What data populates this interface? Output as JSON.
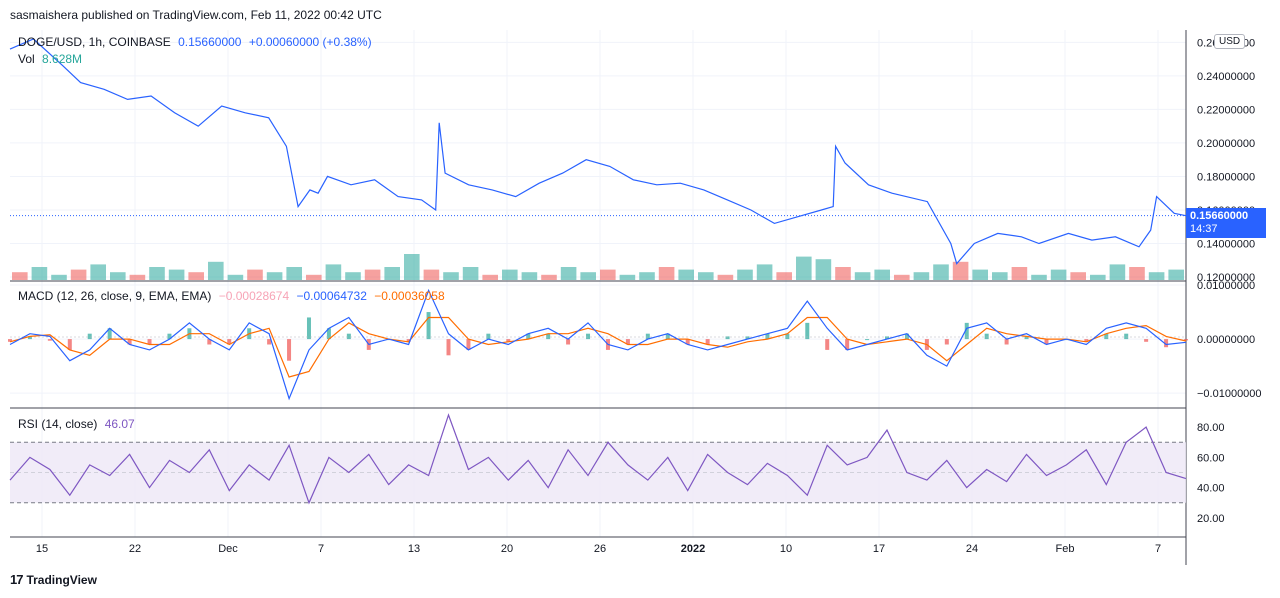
{
  "header": {
    "published": "sasmaishera published on TradingView.com, Feb 11, 2022 00:42 UTC"
  },
  "footer": {
    "brand": "TradingView"
  },
  "currency_badge": "USD",
  "colors": {
    "price_line": "#2962ff",
    "vol_up": "#26a69a",
    "vol_down": "#ef5350",
    "macd_line": "#2962ff",
    "signal_line": "#ff6d00",
    "rsi_line": "#7e57c2",
    "rsi_band": "#ede7f6",
    "grid": "#f0f3fa"
  },
  "legend": {
    "symbol": "DOGE/USD, 1h, COINBASE",
    "last": "0.15660000",
    "change": "+0.00060000 (+0.38%)",
    "vol_label": "Vol",
    "vol_value": "8.628M",
    "macd_label": "MACD (12, 26, close, 9, EMA, EMA)",
    "macd_hist": "−0.00028674",
    "macd_value": "−0.00064732",
    "macd_signal": "−0.00036058",
    "rsi_label": "RSI (14, close)",
    "rsi_value": "46.07"
  },
  "price_tag": {
    "price": "0.15660000",
    "countdown": "14:37"
  },
  "chart_data": [
    {
      "type": "line",
      "panel": "price",
      "x_ticks": [
        "15",
        "22",
        "Dec",
        "7",
        "13",
        "20",
        "26",
        "2022",
        "10",
        "17",
        "24",
        "Feb",
        "7"
      ],
      "y_ticks": [
        "0.26000000",
        "0.24000000",
        "0.22000000",
        "0.20000000",
        "0.18000000",
        "0.16000000",
        "0.14000000",
        "0.12000000"
      ],
      "ylim": [
        0.12,
        0.265
      ],
      "current_price": 0.1566,
      "series": [
        {
          "x": [
            0,
            0.02,
            0.045,
            0.06,
            0.08,
            0.1,
            0.12,
            0.14,
            0.16,
            0.18,
            0.2,
            0.22,
            0.235,
            0.245,
            0.255,
            0.262,
            0.27,
            0.29,
            0.31,
            0.33,
            0.35,
            0.362,
            0.365,
            0.37,
            0.39,
            0.41,
            0.43,
            0.45,
            0.47,
            0.49,
            0.51,
            0.53,
            0.55,
            0.57,
            0.59,
            0.61,
            0.63,
            0.65,
            0.67,
            0.69,
            0.7,
            0.702,
            0.71,
            0.73,
            0.75,
            0.78,
            0.8,
            0.805,
            0.82,
            0.84,
            0.86,
            0.875,
            0.9,
            0.92,
            0.94,
            0.96,
            0.97,
            0.975,
            0.99,
            1.0
          ],
          "values": [
            0.256,
            0.262,
            0.246,
            0.236,
            0.232,
            0.226,
            0.228,
            0.218,
            0.21,
            0.222,
            0.218,
            0.215,
            0.198,
            0.162,
            0.172,
            0.17,
            0.18,
            0.175,
            0.178,
            0.168,
            0.166,
            0.16,
            0.212,
            0.182,
            0.175,
            0.172,
            0.168,
            0.176,
            0.182,
            0.19,
            0.186,
            0.178,
            0.175,
            0.176,
            0.172,
            0.166,
            0.16,
            0.152,
            0.156,
            0.16,
            0.162,
            0.198,
            0.188,
            0.175,
            0.17,
            0.165,
            0.14,
            0.128,
            0.14,
            0.146,
            0.144,
            0.14,
            0.146,
            0.142,
            0.144,
            0.138,
            0.148,
            0.168,
            0.158,
            0.1566
          ]
        }
      ]
    },
    {
      "type": "bar",
      "panel": "volume",
      "series": [
        {
          "name": "Vol",
          "values": [
            0.3,
            0.5,
            0.2,
            0.4,
            0.6,
            0.3,
            0.2,
            0.5,
            0.4,
            0.3,
            0.7,
            0.2,
            0.4,
            0.3,
            0.5,
            0.2,
            0.6,
            0.3,
            0.4,
            0.5,
            1.0,
            0.4,
            0.3,
            0.5,
            0.2,
            0.4,
            0.3,
            0.2,
            0.5,
            0.3,
            0.4,
            0.2,
            0.3,
            0.5,
            0.4,
            0.3,
            0.2,
            0.4,
            0.6,
            0.3,
            0.9,
            0.8,
            0.5,
            0.3,
            0.4,
            0.2,
            0.3,
            0.6,
            0.7,
            0.4,
            0.3,
            0.5,
            0.2,
            0.4,
            0.3,
            0.2,
            0.6,
            0.5,
            0.3,
            0.4
          ]
        }
      ]
    },
    {
      "type": "line",
      "panel": "macd",
      "y_ticks": [
        "0.01000000",
        "0.00000000",
        "−0.01000000"
      ],
      "ylim": [
        -0.012,
        0.01
      ],
      "series": [
        {
          "name": "MACD",
          "values": [
            -0.001,
            0.001,
            0.0005,
            -0.004,
            -0.002,
            0.002,
            -0.001,
            -0.002,
            0.0,
            0.003,
            0.0,
            -0.002,
            0.003,
            0.001,
            -0.011,
            -0.002,
            0.002,
            0.004,
            -0.001,
            0.0,
            -0.001,
            0.009,
            0.001,
            -0.002,
            0.0,
            -0.001,
            0.001,
            0.002,
            0.0,
            0.003,
            -0.001,
            -0.002,
            0.0,
            0.001,
            -0.001,
            -0.002,
            -0.001,
            0.0,
            0.001,
            0.002,
            0.007,
            0.002,
            -0.002,
            -0.001,
            0.0,
            0.001,
            -0.003,
            -0.005,
            0.002,
            0.003,
            0.0,
            0.001,
            -0.001,
            0.0,
            -0.001,
            0.002,
            0.003,
            0.002,
            -0.001,
            -0.0006
          ]
        },
        {
          "name": "Signal",
          "values": [
            -0.0005,
            0.0005,
            0.0008,
            -0.002,
            -0.003,
            0.0,
            0.0,
            -0.001,
            -0.001,
            0.001,
            0.001,
            -0.001,
            0.001,
            0.002,
            -0.007,
            -0.006,
            0.0,
            0.003,
            0.001,
            0.0,
            -0.0005,
            0.004,
            0.004,
            0.0,
            -0.001,
            -0.0005,
            0.0,
            0.001,
            0.001,
            0.002,
            0.001,
            -0.001,
            -0.001,
            0.0,
            0.0,
            -0.001,
            -0.0015,
            -0.0005,
            0.0,
            0.001,
            0.004,
            0.004,
            0.0,
            -0.001,
            -0.0005,
            0.0,
            -0.001,
            -0.004,
            -0.001,
            0.002,
            0.001,
            0.0005,
            0.0,
            0.0,
            -0.0005,
            0.001,
            0.002,
            0.0025,
            0.0005,
            -0.00036
          ]
        }
      ]
    },
    {
      "type": "line",
      "panel": "rsi",
      "y_ticks": [
        "80.00",
        "60.00",
        "40.00",
        "20.00"
      ],
      "ylim": [
        10,
        90
      ],
      "bands": [
        30,
        70
      ],
      "series": [
        {
          "name": "RSI",
          "values": [
            45,
            60,
            52,
            35,
            55,
            48,
            62,
            40,
            58,
            50,
            65,
            38,
            55,
            45,
            68,
            30,
            60,
            50,
            62,
            42,
            55,
            48,
            88,
            52,
            60,
            45,
            58,
            40,
            65,
            48,
            70,
            55,
            45,
            60,
            38,
            62,
            50,
            42,
            56,
            48,
            35,
            68,
            55,
            60,
            78,
            50,
            45,
            58,
            40,
            52,
            44,
            62,
            48,
            55,
            65,
            42,
            70,
            80,
            50,
            46
          ]
        }
      ]
    }
  ]
}
